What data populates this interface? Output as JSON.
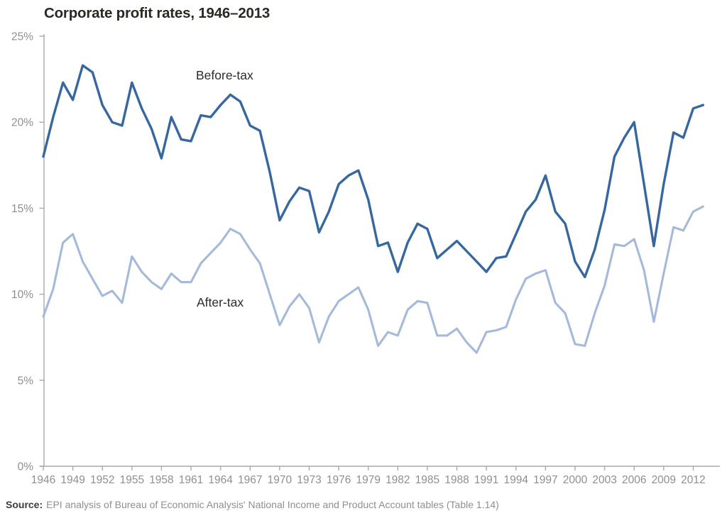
{
  "title": "Corporate profit rates, 1946–2013",
  "legend": {
    "before": "Before-tax",
    "after": "After-tax"
  },
  "source": {
    "label": "Source:",
    "text": "EPI analysis of Bureau of Economic Analysis' National Income and Product Account tables (Table 1.14)"
  },
  "colors": {
    "before_tax": "#36679E",
    "after_tax": "#A5BADB",
    "axis": "#A9A9A9",
    "tick_label": "#8F8F8F"
  },
  "chart_data": {
    "type": "line",
    "title": "Corporate profit rates, 1946–2013",
    "xlabel": "",
    "ylabel": "",
    "grid": false,
    "legend_position": "inline-labels",
    "ylim": [
      0,
      25
    ],
    "y_tick_values": [
      0,
      5,
      10,
      15,
      20,
      25
    ],
    "y_tick_labels": [
      "0%",
      "5%",
      "10%",
      "15%",
      "20%",
      "25%"
    ],
    "x_tick_years": [
      1946,
      1949,
      1952,
      1955,
      1958,
      1961,
      1964,
      1967,
      1970,
      1973,
      1976,
      1979,
      1982,
      1985,
      1988,
      1991,
      1994,
      1997,
      2000,
      2003,
      2006,
      2009,
      2012
    ],
    "x": [
      1946,
      1947,
      1948,
      1949,
      1950,
      1951,
      1952,
      1953,
      1954,
      1955,
      1956,
      1957,
      1958,
      1959,
      1960,
      1961,
      1962,
      1963,
      1964,
      1965,
      1966,
      1967,
      1968,
      1969,
      1970,
      1971,
      1972,
      1973,
      1974,
      1975,
      1976,
      1977,
      1978,
      1979,
      1980,
      1981,
      1982,
      1983,
      1984,
      1985,
      1986,
      1987,
      1988,
      1989,
      1990,
      1991,
      1992,
      1993,
      1994,
      1995,
      1996,
      1997,
      1998,
      1999,
      2000,
      2001,
      2002,
      2003,
      2004,
      2005,
      2006,
      2007,
      2008,
      2009,
      2010,
      2011,
      2012,
      2013
    ],
    "series": [
      {
        "name": "Before-tax",
        "color": "#36679E",
        "values": [
          18.0,
          20.3,
          22.3,
          21.3,
          23.3,
          22.9,
          21.0,
          20.0,
          19.8,
          22.3,
          20.8,
          19.6,
          17.9,
          20.3,
          19.0,
          18.9,
          20.4,
          20.3,
          21.0,
          21.6,
          21.2,
          19.8,
          19.5,
          17.1,
          14.3,
          15.4,
          16.2,
          16.0,
          13.6,
          14.8,
          16.4,
          16.9,
          17.2,
          15.5,
          12.8,
          13.0,
          11.3,
          13.0,
          14.1,
          13.8,
          12.1,
          12.6,
          13.1,
          12.5,
          11.9,
          11.3,
          12.1,
          12.2,
          13.5,
          14.8,
          15.5,
          16.9,
          14.8,
          14.1,
          11.9,
          11.0,
          12.6,
          14.9,
          18.0,
          19.1,
          20.0,
          16.4,
          12.8,
          16.4,
          19.4,
          19.1,
          20.8,
          21.0
        ]
      },
      {
        "name": "After-tax",
        "color": "#A5BADB",
        "values": [
          8.7,
          10.3,
          13.0,
          13.5,
          11.9,
          10.9,
          9.9,
          10.2,
          9.5,
          12.2,
          11.3,
          10.7,
          10.3,
          11.2,
          10.7,
          10.7,
          11.8,
          12.4,
          13.0,
          13.8,
          13.5,
          12.6,
          11.8,
          10.0,
          8.2,
          9.3,
          10.0,
          9.2,
          7.2,
          8.7,
          9.6,
          10.0,
          10.4,
          9.1,
          7.0,
          7.8,
          7.6,
          9.1,
          9.6,
          9.5,
          7.6,
          7.6,
          8.0,
          7.2,
          6.6,
          7.8,
          7.9,
          8.1,
          9.7,
          10.9,
          11.2,
          11.4,
          9.5,
          8.9,
          7.1,
          7.0,
          8.9,
          10.5,
          12.9,
          12.8,
          13.2,
          11.4,
          8.4,
          11.2,
          13.9,
          13.7,
          14.8,
          15.1
        ]
      }
    ]
  }
}
